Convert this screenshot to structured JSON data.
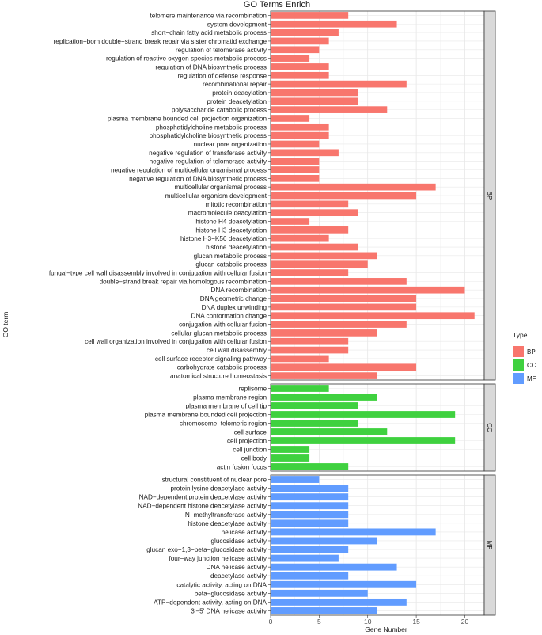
{
  "chart_data": {
    "type": "bar",
    "orientation": "horizontal",
    "title": "GO Terms Enrich",
    "xlabel": "Gene Number",
    "ylabel": "GO term",
    "xlim": [
      0,
      22
    ],
    "xticks": [
      0,
      5,
      10,
      15,
      20
    ],
    "grid": true,
    "legend": {
      "title": "Type",
      "position": "right",
      "entries": [
        {
          "label": "BP",
          "color": "#F8766D"
        },
        {
          "label": "CC",
          "color": "#3FD13F"
        },
        {
          "label": "MF",
          "color": "#619CFF"
        }
      ]
    },
    "facets": [
      {
        "name": "BP",
        "color": "#F8766D",
        "terms": [
          {
            "term": "telomere maintenance via recombination",
            "value": 8
          },
          {
            "term": "system development",
            "value": 13
          },
          {
            "term": "short−chain fatty acid metabolic process",
            "value": 7
          },
          {
            "term": "replication−born double−strand break repair via sister chromatid exchange",
            "value": 6
          },
          {
            "term": "regulation of telomerase activity",
            "value": 5
          },
          {
            "term": "regulation of reactive oxygen species metabolic process",
            "value": 4
          },
          {
            "term": "regulation of DNA biosynthetic process",
            "value": 6
          },
          {
            "term": "regulation of defense response",
            "value": 6
          },
          {
            "term": "recombinational repair",
            "value": 14
          },
          {
            "term": "protein deacylation",
            "value": 9
          },
          {
            "term": "protein deacetylation",
            "value": 9
          },
          {
            "term": "polysaccharide catabolic process",
            "value": 12
          },
          {
            "term": "plasma membrane bounded cell projection organization",
            "value": 4
          },
          {
            "term": "phosphatidylcholine metabolic process",
            "value": 6
          },
          {
            "term": "phosphatidylcholine biosynthetic process",
            "value": 6
          },
          {
            "term": "nuclear pore organization",
            "value": 5
          },
          {
            "term": "negative regulation of transferase activity",
            "value": 7
          },
          {
            "term": "negative regulation of telomerase activity",
            "value": 5
          },
          {
            "term": "negative regulation of multicellular organismal process",
            "value": 5
          },
          {
            "term": "negative regulation of DNA biosynthetic process",
            "value": 5
          },
          {
            "term": "multicellular organismal process",
            "value": 17
          },
          {
            "term": "multicellular organism development",
            "value": 15
          },
          {
            "term": "mitotic recombination",
            "value": 8
          },
          {
            "term": "macromolecule deacylation",
            "value": 9
          },
          {
            "term": "histone H4 deacetylation",
            "value": 4
          },
          {
            "term": "histone H3 deacetylation",
            "value": 8
          },
          {
            "term": "histone H3−K56 deacetylation",
            "value": 6
          },
          {
            "term": "histone deacetylation",
            "value": 9
          },
          {
            "term": "glucan metabolic process",
            "value": 11
          },
          {
            "term": "glucan catabolic process",
            "value": 10
          },
          {
            "term": "fungal−type cell wall disassembly involved in conjugation with cellular fusion",
            "value": 8
          },
          {
            "term": "double−strand break repair via homologous recombination",
            "value": 14
          },
          {
            "term": "DNA recombination",
            "value": 20
          },
          {
            "term": "DNA geometric change",
            "value": 15
          },
          {
            "term": "DNA duplex unwinding",
            "value": 15
          },
          {
            "term": "DNA conformation change",
            "value": 21
          },
          {
            "term": "conjugation with cellular fusion",
            "value": 14
          },
          {
            "term": "cellular glucan metabolic process",
            "value": 11
          },
          {
            "term": "cell wall organization involved in conjugation with cellular fusion",
            "value": 8
          },
          {
            "term": "cell wall disassembly",
            "value": 8
          },
          {
            "term": "cell surface receptor signaling pathway",
            "value": 6
          },
          {
            "term": "carbohydrate catabolic process",
            "value": 15
          },
          {
            "term": "anatomical structure homeostasis",
            "value": 11
          }
        ]
      },
      {
        "name": "CC",
        "color": "#3FD13F",
        "terms": [
          {
            "term": "replisome",
            "value": 6
          },
          {
            "term": "plasma membrane region",
            "value": 11
          },
          {
            "term": "plasma membrane of cell tip",
            "value": 9
          },
          {
            "term": "plasma membrane bounded cell projection",
            "value": 19
          },
          {
            "term": "chromosome, telomeric region",
            "value": 9
          },
          {
            "term": "cell surface",
            "value": 12
          },
          {
            "term": "cell projection",
            "value": 19
          },
          {
            "term": "cell junction",
            "value": 4
          },
          {
            "term": "cell body",
            "value": 4
          },
          {
            "term": "actin fusion focus",
            "value": 8
          }
        ]
      },
      {
        "name": "MF",
        "color": "#619CFF",
        "terms": [
          {
            "term": "structural constituent of nuclear pore",
            "value": 5
          },
          {
            "term": "protein lysine deacetylase activity",
            "value": 8
          },
          {
            "term": "NAD−dependent protein deacetylase activity",
            "value": 8
          },
          {
            "term": "NAD−dependent histone deacetylase activity",
            "value": 8
          },
          {
            "term": "N−methyltransferase activity",
            "value": 8
          },
          {
            "term": "histone deacetylase activity",
            "value": 8
          },
          {
            "term": "helicase activity",
            "value": 17
          },
          {
            "term": "glucosidase activity",
            "value": 11
          },
          {
            "term": "glucan exo−1,3−beta−glucosidase activity",
            "value": 8
          },
          {
            "term": "four−way junction helicase activity",
            "value": 7
          },
          {
            "term": "DNA helicase activity",
            "value": 13
          },
          {
            "term": "deacetylase activity",
            "value": 8
          },
          {
            "term": "catalytic activity, acting on DNA",
            "value": 15
          },
          {
            "term": "beta−glucosidase activity",
            "value": 10
          },
          {
            "term": "ATP−dependent activity, acting on DNA",
            "value": 14
          },
          {
            "term": "3'−5' DNA helicase activity",
            "value": 11
          }
        ]
      }
    ]
  }
}
